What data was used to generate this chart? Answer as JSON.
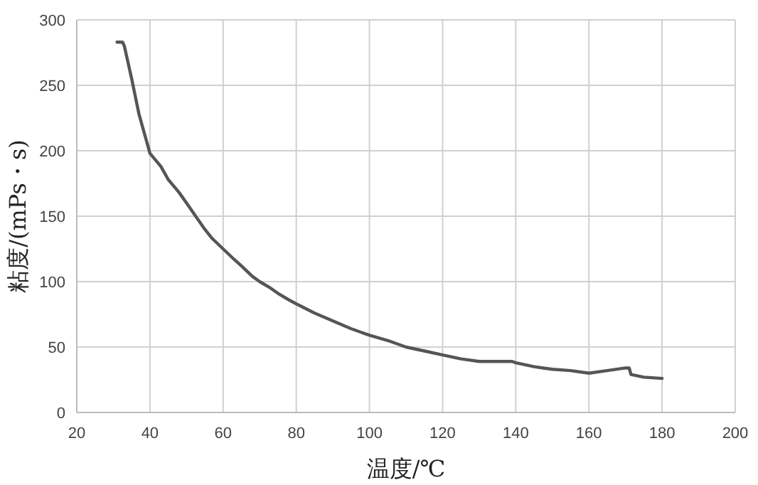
{
  "chart_data": {
    "type": "line",
    "xlabel": "温度/℃",
    "ylabel": "粘度/(mPs・s)",
    "x": [
      31,
      32.5,
      33,
      35,
      37,
      40,
      43,
      45,
      48,
      50,
      53,
      55,
      57,
      60,
      63,
      65,
      68,
      70,
      73,
      75,
      78,
      80,
      85,
      90,
      95,
      100,
      105,
      110,
      115,
      120,
      125,
      130,
      135,
      139,
      140,
      145,
      150,
      155,
      160,
      165,
      170,
      171,
      171.5,
      175,
      180
    ],
    "series": [
      {
        "color": "#555555",
        "values": [
          283,
          283,
          280,
          255,
          228,
          198,
          188,
          178,
          168,
          160,
          148,
          140,
          133,
          125,
          117,
          112,
          104,
          100,
          95,
          91,
          86,
          83,
          76,
          70,
          64,
          59,
          55,
          50,
          47,
          44,
          41,
          39,
          39,
          39,
          38,
          35,
          33,
          32,
          30,
          32,
          34,
          34,
          29,
          27,
          26
        ]
      }
    ],
    "xlim": [
      20,
      200
    ],
    "xticks": [
      20,
      40,
      60,
      80,
      100,
      120,
      140,
      160,
      180,
      200
    ],
    "ylim": [
      0,
      300
    ],
    "yticks": [
      0,
      50,
      100,
      150,
      200,
      250,
      300
    ],
    "grid": true,
    "marker": "none",
    "line_style": "solid"
  }
}
